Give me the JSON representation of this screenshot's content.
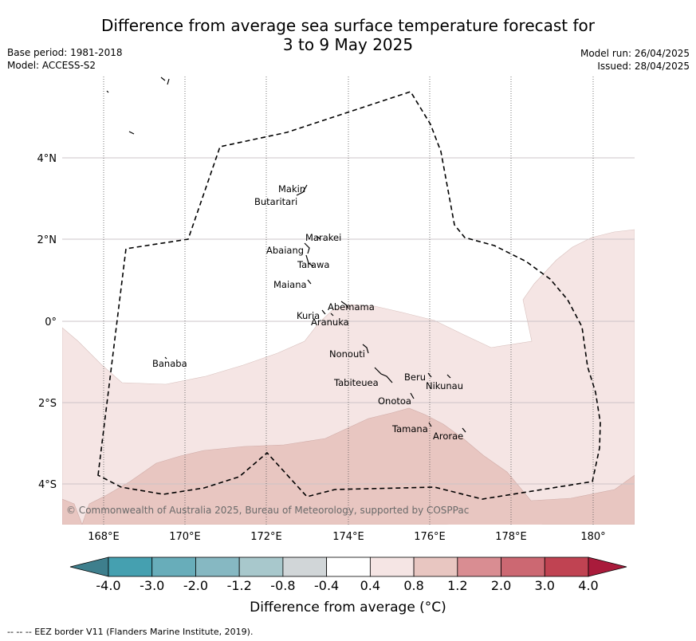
{
  "title_line1": "Difference from average sea surface temperature forecast for",
  "title_line2": "3 to 9 May 2025",
  "base_period": "Base period: 1981-2018",
  "model": "Model: ACCESS-S2",
  "model_run": "Model run: 26/04/2025",
  "issued": "Issued: 28/04/2025",
  "copyright": "© Commonwealth of Australia 2025, Bureau of Meteorology, supported by COSPPac",
  "lat_labels": [
    "4°N",
    "2°N",
    "0°",
    "2°S",
    "4°S"
  ],
  "lon_labels": [
    "168°E",
    "170°E",
    "172°E",
    "174°E",
    "176°E",
    "178°E",
    "180°"
  ],
  "islands": [
    "Makin",
    "Butaritari",
    "Marakei",
    "Abaiang",
    "Tarawa",
    "Maiana",
    "Abemama",
    "Kuria",
    "Aranuka",
    "Banaba",
    "Nonouti",
    "Beru",
    "Nikunau",
    "Tabiteuea",
    "Onotoa",
    "Tamana",
    "Arorae"
  ],
  "colorbar": {
    "ticks": [
      "-4.0",
      "-3.0",
      "-2.0",
      "-1.2",
      "-0.8",
      "-0.4",
      "0.4",
      "0.8",
      "1.2",
      "2.0",
      "3.0",
      "4.0"
    ],
    "colors": [
      "#3e7f8d",
      "#45a0b0",
      "#68adba",
      "#86b8c2",
      "#a8c8cc",
      "#d1d6d8",
      "#ffffff",
      "#f5e5e4",
      "#e8c6c1",
      "#d98d92",
      "#cc6872",
      "#c04352",
      "#a91b3b"
    ],
    "label": "Difference from average (°C)"
  },
  "footnote": "--  --  -- EEZ border V11 (Flanders Marine Institute, 2019)."
}
